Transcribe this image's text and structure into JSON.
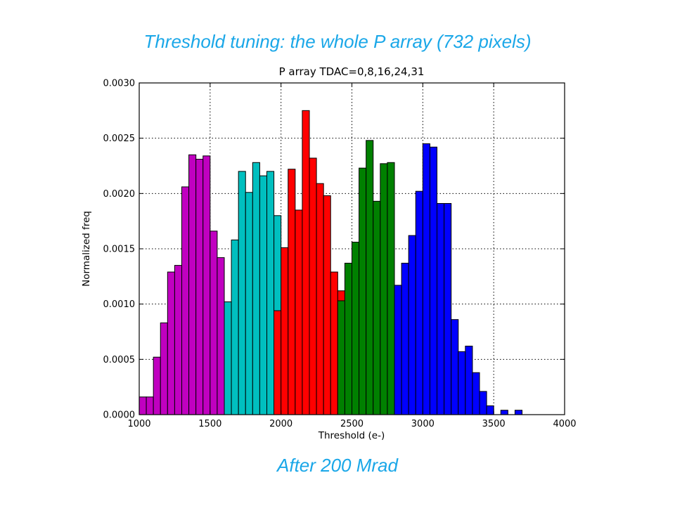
{
  "captions": {
    "top": "Threshold tuning: the whole P array (732 pixels)",
    "bottom": "After 200 Mrad"
  },
  "chart_data": {
    "type": "bar",
    "title": "P array TDAC=0,8,16,24,31",
    "xlabel": "Threshold (e-)",
    "ylabel": "Normalized freq",
    "xlim": [
      1000,
      4000
    ],
    "ylim": [
      0,
      0.003
    ],
    "xticks": [
      "1000",
      "1500",
      "2000",
      "2500",
      "3000",
      "3500",
      "4000"
    ],
    "yticks": [
      "0.0000",
      "0.0005",
      "0.0010",
      "0.0015",
      "0.0020",
      "0.0025",
      "0.0030"
    ],
    "grid": true,
    "bin_width": 50,
    "series": [
      {
        "color": "#c000c0",
        "bins": [
          [
            1025,
            0.00016
          ],
          [
            1075,
            0.00016
          ],
          [
            1125,
            0.00052
          ],
          [
            1175,
            0.00083
          ],
          [
            1225,
            0.00129
          ],
          [
            1275,
            0.00135
          ],
          [
            1325,
            0.00206
          ],
          [
            1375,
            0.00235
          ],
          [
            1425,
            0.00231
          ],
          [
            1475,
            0.00234
          ],
          [
            1525,
            0.00166
          ],
          [
            1575,
            0.00142
          ],
          [
            1625,
            0.00102
          ],
          [
            1675,
            0.00082
          ],
          [
            1725,
            0.00052
          ],
          [
            1775,
            0.00045
          ],
          [
            1825,
            0.00027
          ],
          [
            1875,
            0.00014
          ],
          [
            1925,
            4e-05
          ],
          [
            1975,
            4e-05
          ]
        ]
      },
      {
        "color": "#00bfbf",
        "bins": [
          [
            1625,
            0.00102
          ],
          [
            1675,
            0.00158
          ],
          [
            1725,
            0.0022
          ],
          [
            1775,
            0.00201
          ],
          [
            1825,
            0.00228
          ],
          [
            1875,
            0.00216
          ],
          [
            1925,
            0.0022
          ],
          [
            1975,
            0.0018
          ],
          [
            2025,
            0.00102
          ],
          [
            2075,
            0.0006
          ],
          [
            2125,
            0.00045
          ],
          [
            2175,
            0.00045
          ],
          [
            2225,
            0.00037
          ],
          [
            2275,
            0.00021
          ],
          [
            2325,
            0.00021
          ],
          [
            2375,
            6e-05
          ],
          [
            2425,
            0.0
          ],
          [
            2475,
            4e-05
          ]
        ]
      },
      {
        "color": "#ff0000",
        "bins": [
          [
            1975,
            0.00094
          ],
          [
            2025,
            0.00151
          ],
          [
            2075,
            0.00222
          ],
          [
            2125,
            0.00185
          ],
          [
            2175,
            0.00275
          ],
          [
            2225,
            0.00232
          ],
          [
            2275,
            0.00209
          ],
          [
            2325,
            0.00198
          ],
          [
            2375,
            0.00129
          ],
          [
            2425,
            0.00112
          ],
          [
            2475,
            0.00073
          ],
          [
            2525,
            0.00046
          ],
          [
            2575,
            0.00037
          ],
          [
            2625,
            0.00024
          ],
          [
            2675,
            4e-05
          ]
        ]
      },
      {
        "color": "#008000",
        "bins": [
          [
            2425,
            0.00103
          ],
          [
            2475,
            0.00137
          ],
          [
            2525,
            0.00156
          ],
          [
            2575,
            0.00223
          ],
          [
            2625,
            0.00248
          ],
          [
            2675,
            0.00193
          ],
          [
            2725,
            0.00227
          ],
          [
            2775,
            0.00228
          ],
          [
            2825,
            0.00101
          ],
          [
            2875,
            0.00077
          ],
          [
            2925,
            0.00049
          ],
          [
            2975,
            0.00037
          ],
          [
            3025,
            0.00013
          ],
          [
            3075,
            4e-05
          ],
          [
            3125,
            4e-05
          ],
          [
            3175,
            4e-05
          ],
          [
            3225,
            8e-05
          ]
        ]
      },
      {
        "color": "#0000ff",
        "bins": [
          [
            2825,
            0.00117
          ],
          [
            2875,
            0.00137
          ],
          [
            2925,
            0.00162
          ],
          [
            2975,
            0.00202
          ],
          [
            3025,
            0.00245
          ],
          [
            3075,
            0.00242
          ],
          [
            3125,
            0.00191
          ],
          [
            3175,
            0.00191
          ],
          [
            3225,
            0.00086
          ],
          [
            3275,
            0.00057
          ],
          [
            3325,
            0.00062
          ],
          [
            3375,
            0.00038
          ],
          [
            3425,
            0.00021
          ],
          [
            3475,
            8e-05
          ],
          [
            3525,
            0.0
          ],
          [
            3575,
            4e-05
          ],
          [
            3625,
            0.0
          ],
          [
            3675,
            4e-05
          ]
        ]
      }
    ]
  }
}
